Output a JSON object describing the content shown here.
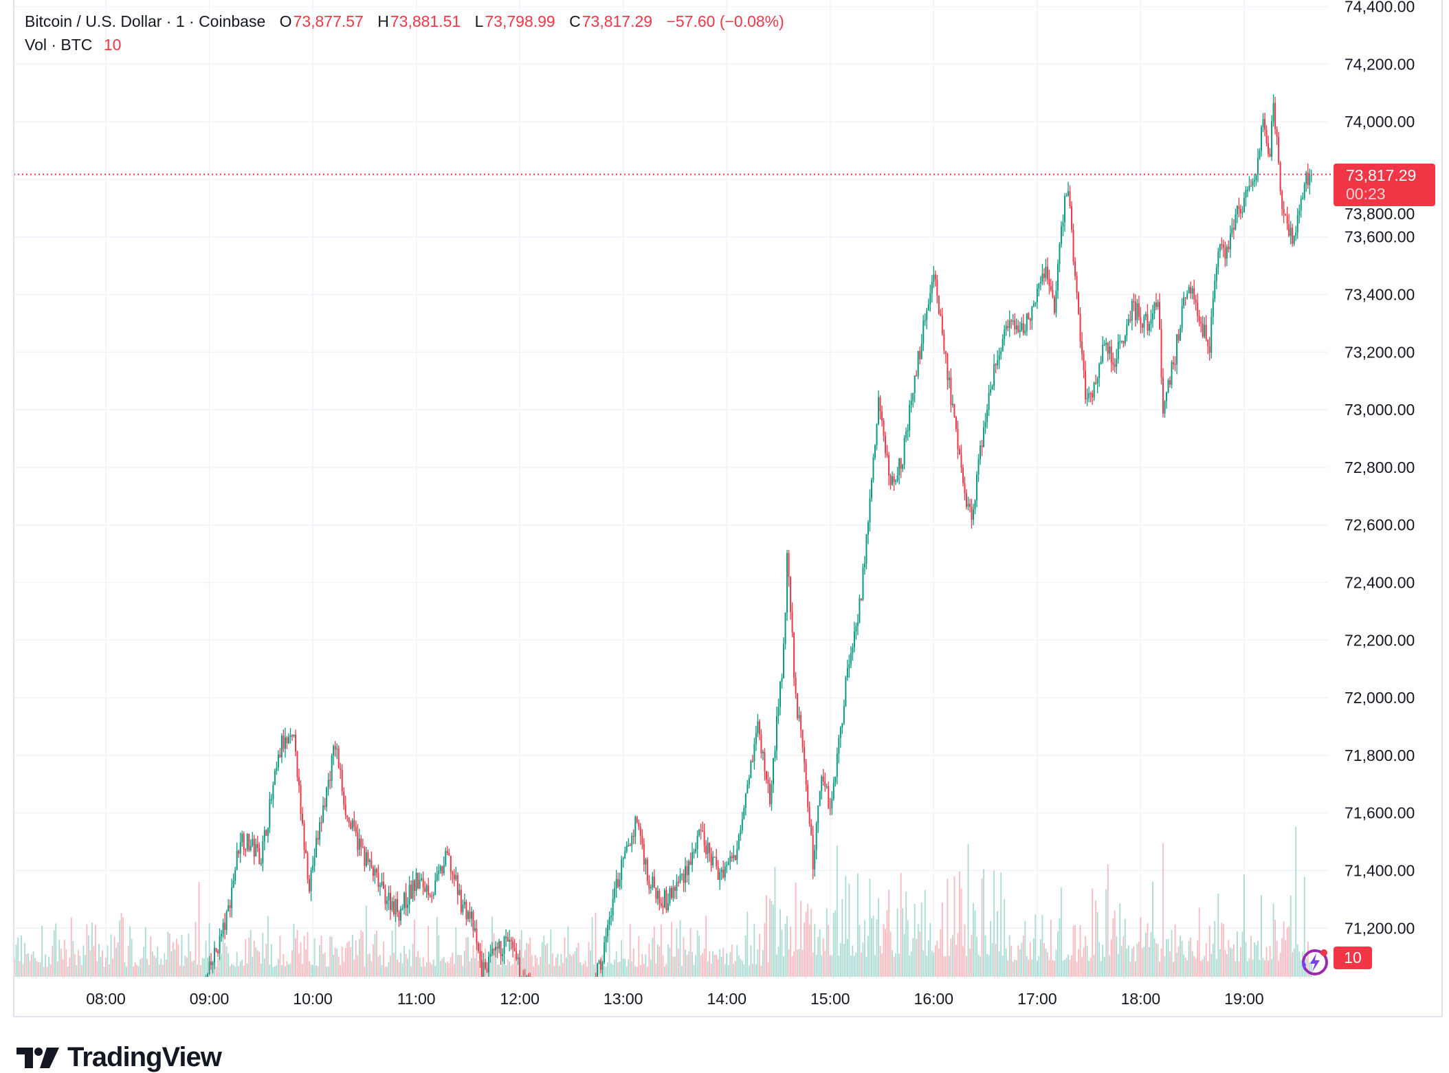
{
  "header": {
    "symbol": "Bitcoin / U.S. Dollar · 1 · Coinbase",
    "open_label": "O",
    "open": "73,877.57",
    "high_label": "H",
    "high": "73,881.51",
    "low_label": "L",
    "low": "73,798.99",
    "close_label": "C",
    "close": "73,817.29",
    "change": "−57.60 (−0.08%)",
    "volume_label": "Vol · BTC",
    "volume": "10"
  },
  "last_price_tag": {
    "price": "73,817.29",
    "countdown": "00:23"
  },
  "volume_tag": "10",
  "brand": "TradingView",
  "colors": {
    "up": "#089981",
    "down": "#F23645",
    "grid": "#F0F3FA",
    "text": "#131722",
    "alert_icon": "#9C27B0"
  },
  "chart_data": {
    "type": "candlestick",
    "interval": "1 minute",
    "ylim": [
      71030,
      74400
    ],
    "y_ticks": [
      "74,400.00",
      "74,200.00",
      "74,000.00",
      "73,800.00",
      "73,600.00",
      "73,400.00",
      "73,200.00",
      "73,000.00",
      "72,800.00",
      "72,600.00",
      "72,400.00",
      "72,200.00",
      "72,000.00",
      "71,800.00",
      "71,600.00",
      "71,400.00",
      "71,200.00"
    ],
    "x_ticks": [
      "08:00",
      "09:00",
      "10:00",
      "11:00",
      "12:00",
      "13:00",
      "14:00",
      "15:00",
      "16:00",
      "17:00",
      "18:00",
      "19:00"
    ],
    "grid": true,
    "last_price": 73817.29,
    "price_path_approx": [
      [
        "07:07",
        70900
      ],
      [
        "08:55",
        70950
      ],
      [
        "09:00",
        71050
      ],
      [
        "09:10",
        71230
      ],
      [
        "09:18",
        71520
      ],
      [
        "09:30",
        71450
      ],
      [
        "09:36",
        71650
      ],
      [
        "09:42",
        71840
      ],
      [
        "09:50",
        71840
      ],
      [
        "09:53",
        71580
      ],
      [
        "09:58",
        71360
      ],
      [
        "10:05",
        71580
      ],
      [
        "10:13",
        71840
      ],
      [
        "10:20",
        71580
      ],
      [
        "10:30",
        71450
      ],
      [
        "10:40",
        71330
      ],
      [
        "10:50",
        71260
      ],
      [
        "11:00",
        71360
      ],
      [
        "11:10",
        71330
      ],
      [
        "11:18",
        71450
      ],
      [
        "11:26",
        71290
      ],
      [
        "11:32",
        71230
      ],
      [
        "11:38",
        71050
      ],
      [
        "11:45",
        71100
      ],
      [
        "11:53",
        71160
      ],
      [
        "12:00",
        71050
      ],
      [
        "12:10",
        70950
      ],
      [
        "12:40",
        70960
      ],
      [
        "12:48",
        71100
      ],
      [
        "12:55",
        71330
      ],
      [
        "13:08",
        71580
      ],
      [
        "13:15",
        71360
      ],
      [
        "13:25",
        71290
      ],
      [
        "13:35",
        71390
      ],
      [
        "13:45",
        71520
      ],
      [
        "13:55",
        71390
      ],
      [
        "14:05",
        71450
      ],
      [
        "14:10",
        71650
      ],
      [
        "14:18",
        71900
      ],
      [
        "14:25",
        71650
      ],
      [
        "14:33",
        72160
      ],
      [
        "14:35",
        72490
      ],
      [
        "14:40",
        72000
      ],
      [
        "14:45",
        71780
      ],
      [
        "14:50",
        71420
      ],
      [
        "14:55",
        71750
      ],
      [
        "15:00",
        71620
      ],
      [
        "15:05",
        71840
      ],
      [
        "15:10",
        72100
      ],
      [
        "15:18",
        72360
      ],
      [
        "15:25",
        72810
      ],
      [
        "15:28",
        73030
      ],
      [
        "15:35",
        72740
      ],
      [
        "15:42",
        72840
      ],
      [
        "15:48",
        73060
      ],
      [
        "15:55",
        73320
      ],
      [
        "16:00",
        73490
      ],
      [
        "16:08",
        73130
      ],
      [
        "16:15",
        72810
      ],
      [
        "16:22",
        72610
      ],
      [
        "16:28",
        72900
      ],
      [
        "16:35",
        73130
      ],
      [
        "16:42",
        73290
      ],
      [
        "16:50",
        73260
      ],
      [
        "17:00",
        73390
      ],
      [
        "17:05",
        73490
      ],
      [
        "17:10",
        73360
      ],
      [
        "17:15",
        73680
      ],
      [
        "17:18",
        73780
      ],
      [
        "17:22",
        73450
      ],
      [
        "17:28",
        73070
      ],
      [
        "17:32",
        73030
      ],
      [
        "17:38",
        73230
      ],
      [
        "17:45",
        73170
      ],
      [
        "17:55",
        73360
      ],
      [
        "18:05",
        73290
      ],
      [
        "18:10",
        73390
      ],
      [
        "18:13",
        73000
      ],
      [
        "18:20",
        73190
      ],
      [
        "18:25",
        73390
      ],
      [
        "18:30",
        73450
      ],
      [
        "18:35",
        73290
      ],
      [
        "18:40",
        73230
      ],
      [
        "18:45",
        73580
      ],
      [
        "18:50",
        73550
      ],
      [
        "18:55",
        73680
      ],
      [
        "19:02",
        73740
      ],
      [
        "19:08",
        73840
      ],
      [
        "19:11",
        74000
      ],
      [
        "19:15",
        73870
      ],
      [
        "19:17",
        74070
      ],
      [
        "19:22",
        73710
      ],
      [
        "19:28",
        73580
      ],
      [
        "19:33",
        73710
      ],
      [
        "19:38",
        73840
      ],
      [
        "19:39",
        73817.29
      ]
    ]
  }
}
